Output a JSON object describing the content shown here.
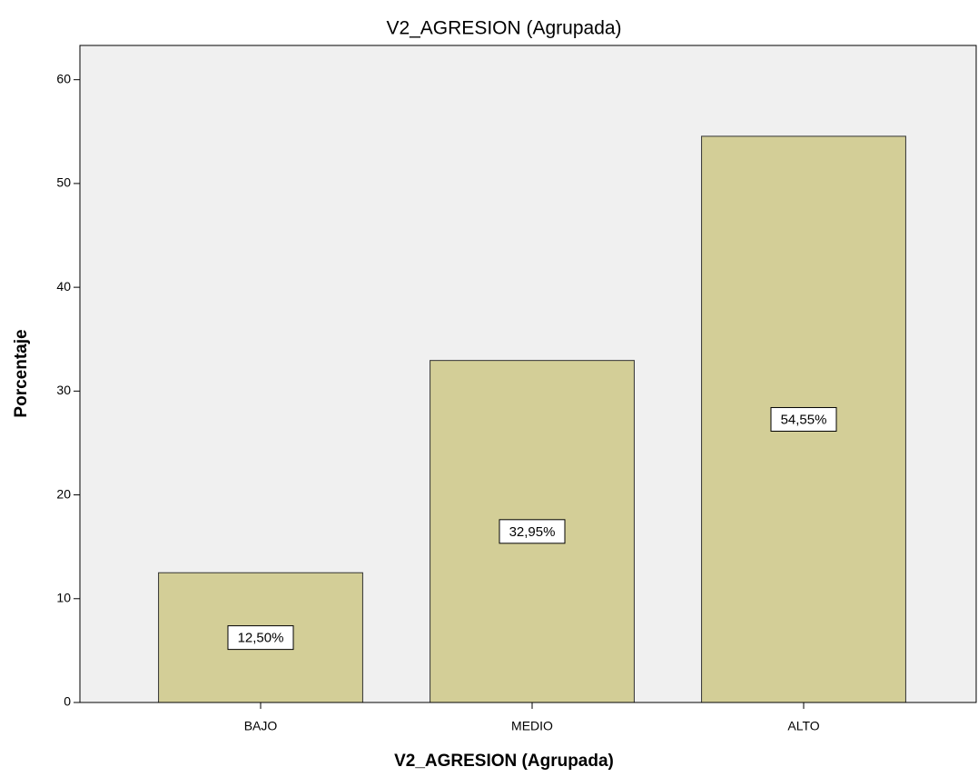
{
  "chart_data": {
    "type": "bar",
    "title": "V2_AGRESION (Agrupada)",
    "x_label": "V2_AGRESION (Agrupada)",
    "y_label": "Porcentaje",
    "categories": [
      "BAJO",
      "MEDIO",
      "ALTO"
    ],
    "values": [
      12.5,
      32.95,
      54.55
    ],
    "value_labels": [
      "12,50%",
      "32,95%",
      "54,55%"
    ],
    "color": "#d3ce97",
    "ylim": [
      0,
      63.3
    ],
    "yticks": [
      0,
      10,
      20,
      30,
      40,
      50,
      60
    ],
    "grid": false
  }
}
